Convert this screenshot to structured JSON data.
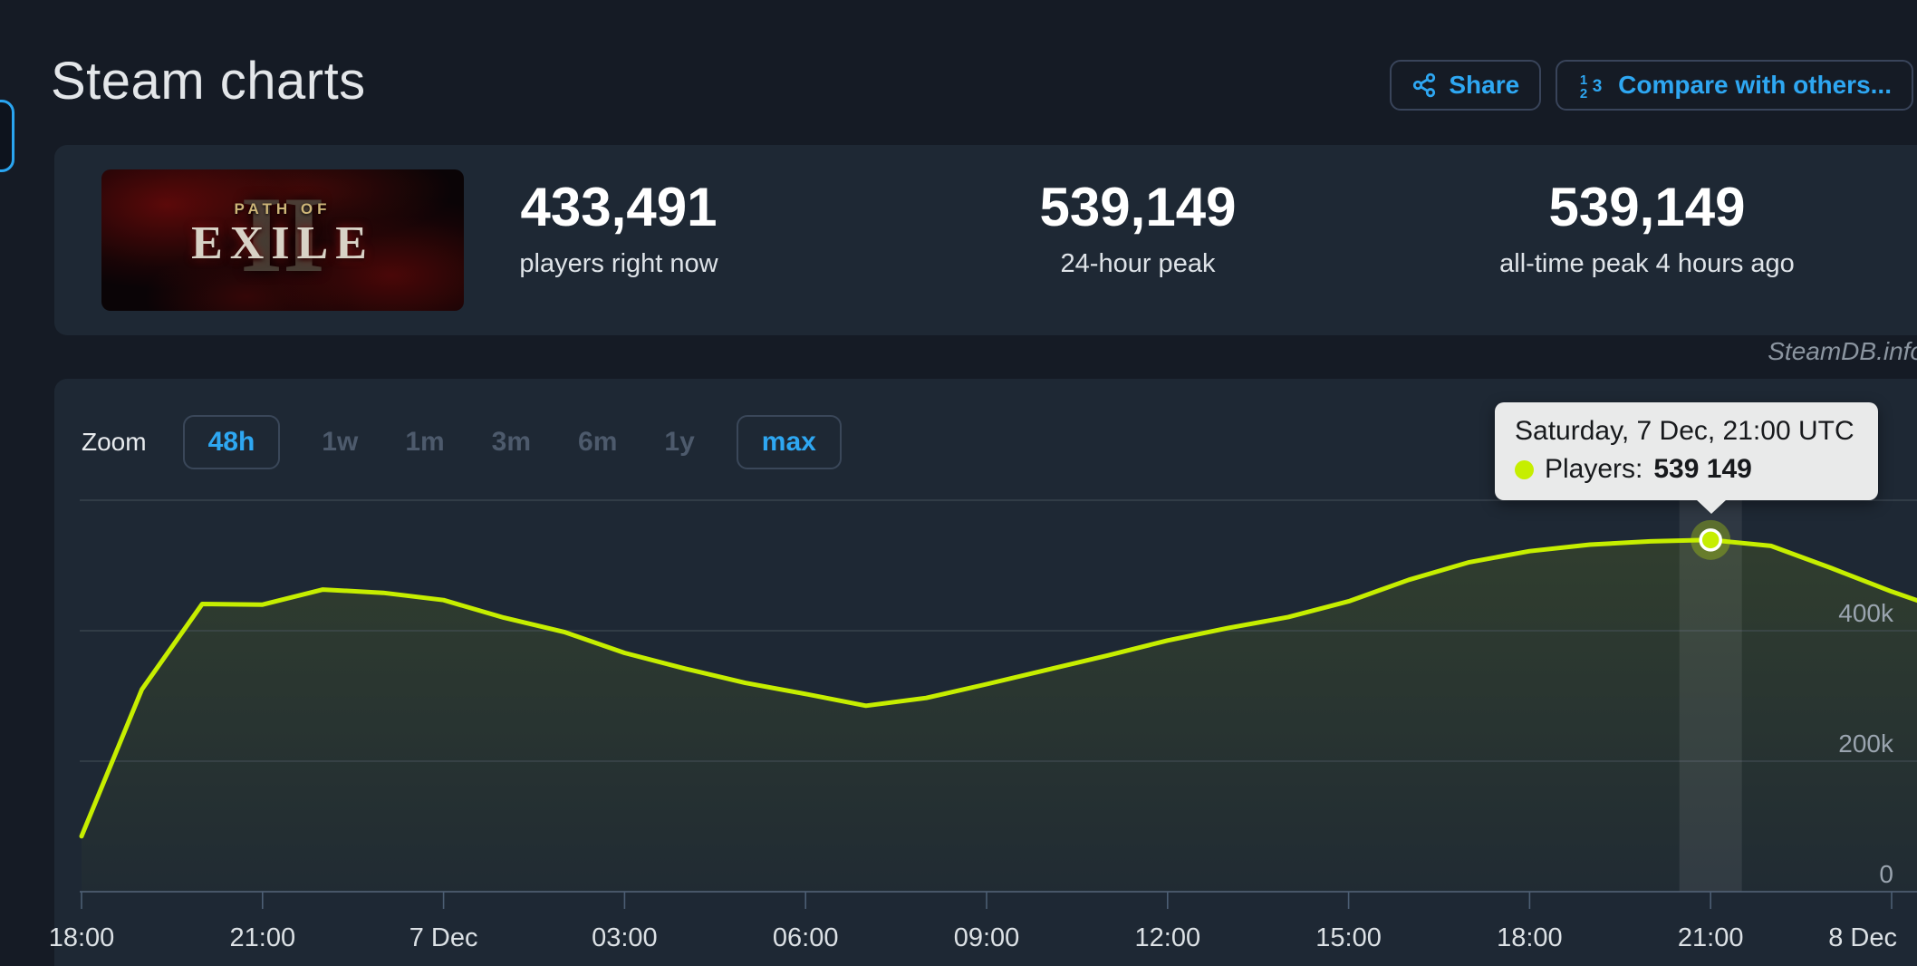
{
  "header": {
    "title": "Steam charts",
    "share_label": "Share",
    "compare_label": "Compare with others..."
  },
  "stats": {
    "capsule": {
      "numeral": "II",
      "title_top": "PATH OF",
      "title_main": "EXILE"
    },
    "items": [
      {
        "value": "433,491",
        "label": "players right now"
      },
      {
        "value": "539,149",
        "label": "24-hour peak"
      },
      {
        "value": "539,149",
        "label": "all-time peak 4 hours ago"
      }
    ]
  },
  "watermark": "SteamDB.info",
  "zoom_controls": {
    "label": "Zoom",
    "ranges": [
      {
        "label": "48h",
        "style": "boxed"
      },
      {
        "label": "1w",
        "style": "dim"
      },
      {
        "label": "1m",
        "style": "dim"
      },
      {
        "label": "3m",
        "style": "dim"
      },
      {
        "label": "6m",
        "style": "dim"
      },
      {
        "label": "1y",
        "style": "dim"
      },
      {
        "label": "max",
        "style": "boxed"
      }
    ]
  },
  "tooltip": {
    "datetime": "Saturday, 7 Dec, 21:00 UTC",
    "series_label": "Players:",
    "value": "539 149"
  },
  "chart_data": {
    "type": "line",
    "x_unit": "hours since 6 Dec 18:00 UTC",
    "ylim": [
      0,
      629000
    ],
    "grid": true,
    "legend": false,
    "x_ticks": [
      {
        "h": 0,
        "label": "18:00"
      },
      {
        "h": 3,
        "label": "21:00"
      },
      {
        "h": 6,
        "label": "7 Dec"
      },
      {
        "h": 9,
        "label": "03:00"
      },
      {
        "h": 12,
        "label": "06:00"
      },
      {
        "h": 15,
        "label": "09:00"
      },
      {
        "h": 18,
        "label": "12:00"
      },
      {
        "h": 21,
        "label": "15:00"
      },
      {
        "h": 24,
        "label": "18:00"
      },
      {
        "h": 27,
        "label": "21:00"
      },
      {
        "h": 30,
        "label": "8 Dec"
      }
    ],
    "y_ticks": [
      {
        "v": 400000,
        "label": "400k"
      },
      {
        "v": 200000,
        "label": "200k"
      },
      {
        "v": 0,
        "label": "0"
      }
    ],
    "y_gridlines": [
      600000,
      400000,
      200000
    ],
    "series": [
      {
        "name": "Players",
        "color": "#c6ee00",
        "points": [
          [
            0,
            85000
          ],
          [
            1,
            310000
          ],
          [
            2,
            441000
          ],
          [
            3,
            440000
          ],
          [
            4,
            463000
          ],
          [
            5,
            458000
          ],
          [
            6,
            447000
          ],
          [
            7,
            420000
          ],
          [
            8,
            398000
          ],
          [
            9,
            366000
          ],
          [
            10,
            342000
          ],
          [
            11,
            320000
          ],
          [
            12,
            303000
          ],
          [
            13,
            285000
          ],
          [
            14,
            297000
          ],
          [
            15,
            318000
          ],
          [
            16,
            340000
          ],
          [
            17,
            362000
          ],
          [
            18,
            385000
          ],
          [
            19,
            404000
          ],
          [
            20,
            421000
          ],
          [
            21,
            445000
          ],
          [
            22,
            478000
          ],
          [
            23,
            505000
          ],
          [
            24,
            522000
          ],
          [
            25,
            532000
          ],
          [
            26,
            537000
          ],
          [
            27,
            539149
          ],
          [
            28,
            530000
          ],
          [
            29,
            496000
          ],
          [
            30,
            460000
          ],
          [
            30.5,
            444000
          ]
        ]
      }
    ],
    "selected_point": {
      "h": 27,
      "v": 539149
    }
  }
}
